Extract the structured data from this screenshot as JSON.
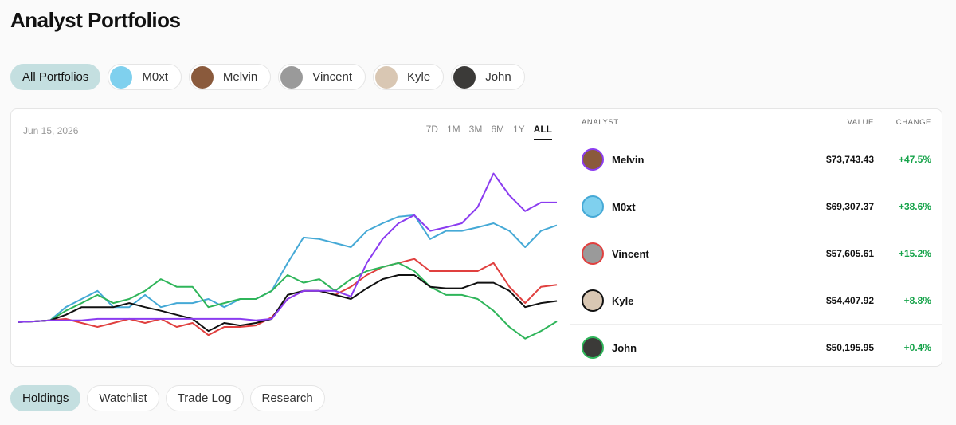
{
  "header": {
    "title": "Analyst Portfolios"
  },
  "filters": [
    {
      "label": "All Portfolios",
      "active": true
    },
    {
      "label": "M0xt",
      "active": false,
      "avatar": "#7fd0ee"
    },
    {
      "label": "Melvin",
      "active": false,
      "avatar": "#8a5a3c"
    },
    {
      "label": "Vincent",
      "active": false,
      "avatar": "#9a9a9a"
    },
    {
      "label": "Kyle",
      "active": false,
      "avatar": "#d9c7b3"
    },
    {
      "label": "John",
      "active": false,
      "avatar": "#3b3a38"
    }
  ],
  "chart_data": {
    "type": "line",
    "date": "Jun 15, 2026",
    "ranges": [
      {
        "label": "7D",
        "active": false
      },
      {
        "label": "1M",
        "active": false
      },
      {
        "label": "3M",
        "active": false
      },
      {
        "label": "6M",
        "active": false
      },
      {
        "label": "1Y",
        "active": false
      },
      {
        "label": "ALL",
        "active": true
      }
    ],
    "ylim": [
      44500,
      85300
    ],
    "series": [
      {
        "color": "#45a9d6",
        "values": [
          50200,
          50300,
          50500,
          53100,
          54700,
          56300,
          53100,
          53100,
          55500,
          53100,
          53900,
          53900,
          54700,
          53100,
          54700,
          54700,
          56300,
          61800,
          66800,
          66500,
          65700,
          64900,
          68100,
          69600,
          70900,
          71200,
          66500,
          68100,
          68100,
          68800,
          69600,
          68100,
          64900,
          68100,
          69200
        ]
      },
      {
        "color": "#e0403f",
        "values": [
          50200,
          50300,
          50500,
          50800,
          50000,
          49200,
          50000,
          50800,
          50000,
          50800,
          49200,
          50000,
          47600,
          49200,
          49200,
          49500,
          51100,
          54700,
          56300,
          56300,
          55500,
          57100,
          59400,
          61000,
          61800,
          62600,
          60200,
          60200,
          60200,
          60200,
          61800,
          57100,
          53900,
          57100,
          57500
        ]
      },
      {
        "color": "#2fb55a",
        "values": [
          50200,
          50300,
          50500,
          52400,
          53900,
          55500,
          53900,
          54700,
          56300,
          58600,
          57100,
          57100,
          53100,
          53900,
          54700,
          54700,
          56300,
          59400,
          57900,
          58600,
          56300,
          58600,
          60200,
          61000,
          61800,
          60200,
          57100,
          55500,
          55500,
          54700,
          52400,
          49200,
          46900,
          48400,
          50300
        ]
      },
      {
        "color": "#111111",
        "values": [
          50200,
          50300,
          50500,
          51600,
          53100,
          53100,
          53100,
          53900,
          53100,
          52400,
          51600,
          50800,
          48400,
          50000,
          49500,
          50000,
          50800,
          55500,
          56300,
          56300,
          55500,
          54700,
          56800,
          58600,
          59400,
          59400,
          57100,
          56800,
          56800,
          57900,
          57900,
          56300,
          53100,
          53900,
          54300
        ]
      },
      {
        "color": "#8b3cf0",
        "values": [
          50200,
          50300,
          50500,
          50500,
          50500,
          50800,
          50800,
          50800,
          50800,
          50800,
          50800,
          50800,
          50800,
          50800,
          50800,
          50500,
          50800,
          54700,
          56300,
          56300,
          56300,
          55200,
          61800,
          66500,
          69600,
          71200,
          68100,
          68800,
          69600,
          72800,
          79400,
          75100,
          72000,
          73700,
          73700
        ]
      }
    ]
  },
  "table": {
    "columns": [
      "ANALYST",
      "VALUE",
      "CHANGE"
    ],
    "rows": [
      {
        "name": "Melvin",
        "value": "$73,743.43",
        "change": "+47.5%",
        "ring": "#8b3cf0",
        "avatar": "#8a5a3c"
      },
      {
        "name": "M0xt",
        "value": "$69,307.37",
        "change": "+38.6%",
        "ring": "#45a9d6",
        "avatar": "#7fd0ee"
      },
      {
        "name": "Vincent",
        "value": "$57,605.61",
        "change": "+15.2%",
        "ring": "#e0403f",
        "avatar": "#9a9a9a"
      },
      {
        "name": "Kyle",
        "value": "$54,407.92",
        "change": "+8.8%",
        "ring": "#111111",
        "avatar": "#d9c7b3"
      },
      {
        "name": "John",
        "value": "$50,195.95",
        "change": "+0.4%",
        "ring": "#2fb55a",
        "avatar": "#3b3a38"
      }
    ]
  },
  "tabs": [
    {
      "label": "Holdings",
      "active": true
    },
    {
      "label": "Watchlist",
      "active": false
    },
    {
      "label": "Trade Log",
      "active": false
    },
    {
      "label": "Research",
      "active": false
    }
  ]
}
